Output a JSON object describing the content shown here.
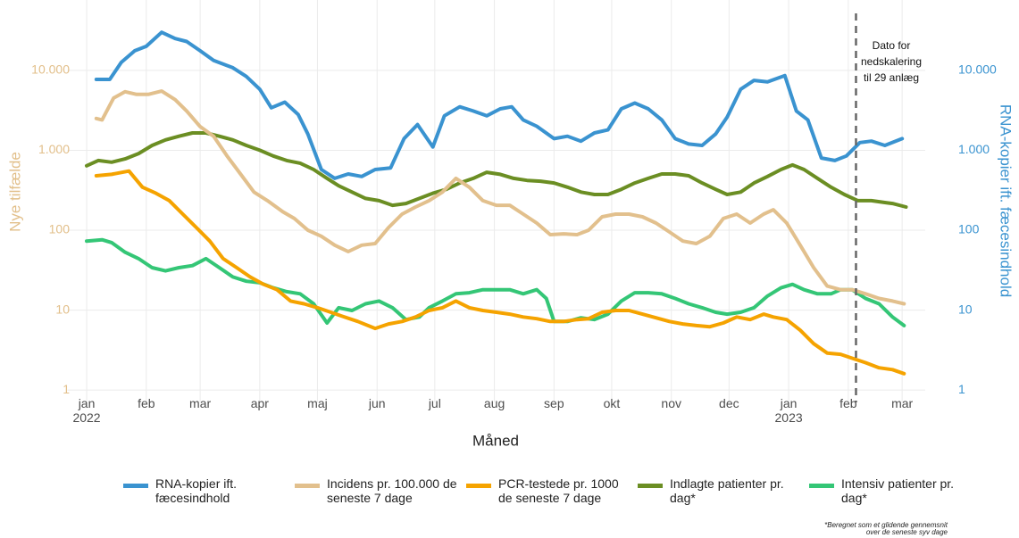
{
  "chart_data": {
    "type": "line",
    "xlabel": "Måned",
    "ylabel": "Nye tilfælde",
    "y2label": "RNA-kopier ift. fæcesindhold",
    "log_scale": true,
    "grid": true,
    "xlim": [
      -10,
      436
    ],
    "xticks": [
      {
        "value": 0,
        "label": "jan\n2022"
      },
      {
        "value": 31,
        "label": "feb"
      },
      {
        "value": 59,
        "label": "mar"
      },
      {
        "value": 90,
        "label": "apr"
      },
      {
        "value": 120,
        "label": "maj"
      },
      {
        "value": 151,
        "label": "jun"
      },
      {
        "value": 181,
        "label": "jul"
      },
      {
        "value": 212,
        "label": "aug"
      },
      {
        "value": 243,
        "label": "sep"
      },
      {
        "value": 273,
        "label": "okt"
      },
      {
        "value": 304,
        "label": "nov"
      },
      {
        "value": 334,
        "label": "dec"
      },
      {
        "value": 365,
        "label": "jan\n2023"
      },
      {
        "value": 396,
        "label": "feb"
      },
      {
        "value": 424,
        "label": "mar"
      }
    ],
    "ylim": [
      0.7,
      80000
    ],
    "yticks": [
      1,
      10,
      100,
      {
        "value": 1000,
        "label": "1.000"
      },
      {
        "value": 10000,
        "label": "10.000"
      }
    ],
    "y2lim": [
      0.7,
      80000
    ],
    "y2ticks": [
      1,
      10,
      100,
      {
        "value": 1000,
        "label": "1.000"
      },
      {
        "value": 10000,
        "label": "10.000"
      }
    ],
    "left_axis_color": "#e2bf8a",
    "right_axis_color": "#3a93d0",
    "annotation": {
      "x": 400,
      "lines": [
        "Dato for",
        "nedskalering",
        "til 29 anlæg"
      ]
    },
    "footnote": [
      "*Beregnet som et glidende gennemsnit",
      "over de seneste syv dage"
    ],
    "series": [
      {
        "name": "RNA-kopier ift. fæcesindhold",
        "color": "#3a93d0",
        "axis": "y2",
        "x": [
          5,
          12,
          18,
          25,
          31,
          39,
          46,
          52,
          59,
          66,
          76,
          83,
          90,
          96,
          103,
          110,
          115,
          122,
          129,
          136,
          143,
          150,
          158,
          165,
          172,
          180,
          186,
          194,
          201,
          208,
          215,
          221,
          227,
          234,
          243,
          250,
          257,
          264,
          271,
          278,
          285,
          292,
          299,
          306,
          313,
          320,
          327,
          333,
          340,
          347,
          354,
          363,
          369,
          375,
          382,
          389,
          395,
          402,
          408,
          415,
          424
        ],
        "values": [
          7700,
          7700,
          12600,
          17600,
          20000,
          30000,
          25000,
          23000,
          17600,
          13300,
          10800,
          8400,
          5800,
          3400,
          4000,
          2800,
          1600,
          575,
          445,
          505,
          470,
          575,
          600,
          1400,
          2100,
          1100,
          2700,
          3500,
          3100,
          2700,
          3300,
          3500,
          2400,
          2000,
          1400,
          1500,
          1300,
          1650,
          1800,
          3300,
          3900,
          3300,
          2400,
          1400,
          1200,
          1150,
          1600,
          2600,
          5800,
          7500,
          7200,
          8600,
          3100,
          2400,
          800,
          745,
          850,
          1250,
          1300,
          1150,
          1400
        ]
      },
      {
        "name": "Incidens pr. 100.000 de seneste 7 dage",
        "color": "#e2c08d",
        "x": [
          5,
          8,
          14,
          20,
          26,
          32,
          39,
          46,
          52,
          59,
          66,
          73,
          80,
          87,
          94,
          102,
          108,
          115,
          122,
          129,
          136,
          143,
          150,
          157,
          164,
          171,
          178,
          185,
          192,
          199,
          206,
          213,
          220,
          227,
          234,
          241,
          248,
          255,
          261,
          268,
          275,
          282,
          289,
          296,
          303,
          310,
          317,
          324,
          331,
          338,
          345,
          352,
          357,
          364,
          371,
          378,
          385,
          392,
          398,
          405,
          412,
          419,
          425
        ],
        "values": [
          2500,
          2400,
          4500,
          5400,
          5000,
          5000,
          5500,
          4300,
          3100,
          1980,
          1500,
          850,
          505,
          300,
          234,
          170,
          140,
          100,
          84,
          65,
          54,
          65,
          68,
          108,
          159,
          195,
          234,
          300,
          445,
          344,
          234,
          205,
          205,
          159,
          123,
          88,
          90,
          88,
          100,
          147,
          159,
          159,
          147,
          123,
          95,
          73,
          68,
          84,
          140,
          159,
          123,
          159,
          180,
          123,
          65,
          34,
          20,
          18,
          18,
          16,
          14,
          13,
          12
        ]
      },
      {
        "name": "PCR-testede pr. 1000 de seneste 7 dage",
        "color": "#f5a300",
        "x": [
          5,
          13,
          22,
          29,
          36,
          43,
          50,
          57,
          64,
          71,
          78,
          85,
          92,
          99,
          106,
          113,
          120,
          127,
          134,
          141,
          150,
          157,
          164,
          171,
          178,
          185,
          192,
          199,
          206,
          213,
          220,
          227,
          234,
          241,
          248,
          255,
          261,
          268,
          275,
          282,
          289,
          296,
          303,
          310,
          317,
          324,
          331,
          338,
          345,
          352,
          357,
          364,
          371,
          378,
          385,
          392,
          398,
          405,
          412,
          419,
          425
        ],
        "values": [
          480,
          500,
          550,
          345,
          290,
          234,
          159,
          108,
          73,
          44,
          34,
          26,
          21,
          18,
          13,
          12,
          10.7,
          9.4,
          8.2,
          7.2,
          5.9,
          6.7,
          7.2,
          8.2,
          9.9,
          10.7,
          13,
          10.7,
          9.9,
          9.4,
          8.9,
          8.2,
          7.8,
          7.2,
          7.2,
          7.6,
          7.8,
          9.4,
          9.9,
          9.9,
          8.9,
          8.0,
          7.2,
          6.7,
          6.4,
          6.2,
          6.9,
          8.2,
          7.6,
          8.9,
          8.2,
          7.6,
          5.6,
          3.8,
          2.9,
          2.8,
          2.5,
          2.2,
          1.9,
          1.8,
          1.6
        ]
      },
      {
        "name": "Indlagte patienter pr. dag*",
        "color": "#6b8e23",
        "x": [
          0,
          6,
          13,
          20,
          27,
          34,
          41,
          48,
          55,
          62,
          69,
          76,
          83,
          90,
          97,
          104,
          111,
          118,
          125,
          131,
          138,
          145,
          152,
          159,
          166,
          173,
          180,
          187,
          194,
          201,
          208,
          215,
          222,
          229,
          236,
          243,
          250,
          257,
          264,
          271,
          278,
          285,
          292,
          299,
          306,
          313,
          320,
          327,
          333,
          340,
          347,
          354,
          361,
          367,
          373,
          380,
          387,
          394,
          401,
          408,
          415,
          419,
          426
        ],
        "values": [
          640,
          745,
          710,
          780,
          910,
          1150,
          1350,
          1500,
          1650,
          1650,
          1500,
          1350,
          1150,
          1000,
          850,
          745,
          690,
          575,
          445,
          360,
          300,
          250,
          234,
          205,
          216,
          250,
          290,
          325,
          390,
          445,
          530,
          500,
          445,
          420,
          410,
          390,
          345,
          300,
          280,
          280,
          325,
          390,
          445,
          505,
          505,
          480,
          390,
          325,
          280,
          300,
          390,
          470,
          575,
          655,
          575,
          445,
          345,
          280,
          234,
          234,
          222,
          216,
          195
        ]
      },
      {
        "name": "Intensiv patienter pr. dag*",
        "color": "#34c676",
        "x": [
          0,
          8,
          13,
          20,
          27,
          34,
          41,
          48,
          55,
          62,
          69,
          76,
          83,
          90,
          97,
          104,
          111,
          118,
          125,
          131,
          138,
          145,
          152,
          159,
          166,
          173,
          178,
          185,
          192,
          199,
          206,
          213,
          220,
          227,
          234,
          239,
          243,
          250,
          257,
          264,
          271,
          278,
          285,
          292,
          299,
          306,
          313,
          320,
          327,
          333,
          340,
          347,
          354,
          361,
          367,
          373,
          380,
          387,
          392,
          398,
          405,
          412,
          419,
          425
        ],
        "values": [
          73,
          76,
          70,
          53,
          44,
          34,
          31,
          34,
          36,
          44,
          34,
          26,
          23,
          22,
          19,
          17,
          16,
          12,
          6.9,
          10.7,
          9.9,
          12,
          13,
          10.7,
          7.6,
          8.2,
          10.7,
          13,
          16,
          16.5,
          18,
          18,
          18,
          16,
          18,
          14,
          7.2,
          7.2,
          8.0,
          7.6,
          8.9,
          13,
          16.5,
          16.5,
          16,
          14,
          12,
          10.7,
          9.4,
          8.9,
          9.4,
          10.7,
          15,
          19,
          21,
          18,
          16,
          16,
          18,
          18,
          14,
          12,
          8.2,
          6.4
        ]
      }
    ]
  }
}
